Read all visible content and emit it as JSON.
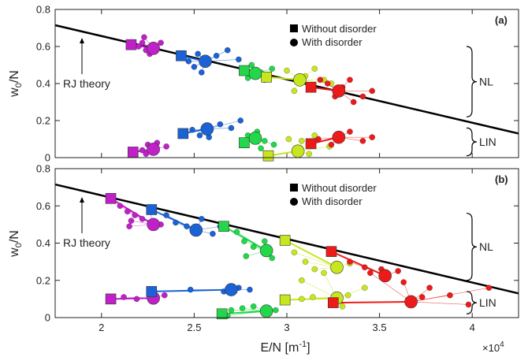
{
  "chart_data": [
    {
      "type": "scatter",
      "panel_label": "(a)",
      "ylabel": "w_0/N",
      "xlim": [
        17500,
        42500
      ],
      "ylim": [
        0,
        0.8
      ],
      "yticks": [
        "0",
        "0.2",
        "0.4",
        "0.6",
        "0.8"
      ],
      "legend": [
        "Without disorder",
        "With disorder"
      ],
      "legend_position": "top-center",
      "annotations": {
        "theory": "RJ theory",
        "upper_group": "NL",
        "lower_group": "LIN"
      },
      "theory_line": {
        "x": [
          17500,
          42500
        ],
        "y": [
          0.715,
          0.13
        ]
      },
      "series": [
        {
          "color": "#c020c8",
          "no_disorder": [
            [
              21600,
              0.61
            ],
            [
              21700,
              0.03
            ]
          ],
          "disorder_mean": [
            [
              22800,
              0.59
            ],
            [
              22800,
              0.045
            ]
          ],
          "disorder_samples": [
            [
              22000,
              0.6
            ],
            [
              22200,
              0.62
            ],
            [
              22400,
              0.58
            ],
            [
              22600,
              0.56
            ],
            [
              23200,
              0.62
            ],
            [
              22300,
              0.65
            ],
            [
              22200,
              0.04
            ],
            [
              22500,
              0.07
            ],
            [
              23000,
              0.08
            ],
            [
              23500,
              0.06
            ],
            [
              22400,
              0.02
            ]
          ]
        },
        {
          "color": "#1a62d6",
          "no_disorder": [
            [
              24300,
              0.55
            ],
            [
              24400,
              0.13
            ]
          ],
          "disorder_mean": [
            [
              25600,
              0.52
            ],
            [
              25700,
              0.155
            ]
          ],
          "disorder_samples": [
            [
              24700,
              0.52
            ],
            [
              25000,
              0.49
            ],
            [
              25200,
              0.56
            ],
            [
              26200,
              0.55
            ],
            [
              26800,
              0.58
            ],
            [
              27400,
              0.53
            ],
            [
              25400,
              0.46
            ],
            [
              24900,
              0.15
            ],
            [
              25300,
              0.12
            ],
            [
              26400,
              0.18
            ],
            [
              27000,
              0.16
            ],
            [
              27500,
              0.2
            ],
            [
              25800,
              0.11
            ]
          ]
        },
        {
          "color": "#22d84a",
          "no_disorder": [
            [
              27700,
              0.47
            ],
            [
              27700,
              0.08
            ]
          ],
          "disorder_mean": [
            [
              28300,
              0.455
            ],
            [
              28300,
              0.105
            ]
          ],
          "disorder_samples": [
            [
              27900,
              0.43
            ],
            [
              28100,
              0.5
            ],
            [
              28600,
              0.46
            ],
            [
              28800,
              0.42
            ],
            [
              29200,
              0.48
            ],
            [
              27900,
              0.12
            ],
            [
              28400,
              0.14
            ],
            [
              28800,
              0.09
            ],
            [
              29300,
              0.07
            ],
            [
              28600,
              0.05
            ]
          ]
        },
        {
          "color": "#c8e61e",
          "no_disorder": [
            [
              28900,
              0.435
            ],
            [
              29000,
              0.01
            ]
          ],
          "disorder_mean": [
            [
              30700,
              0.42
            ],
            [
              30600,
              0.035
            ]
          ],
          "disorder_samples": [
            [
              30000,
              0.47
            ],
            [
              31000,
              0.44
            ],
            [
              31500,
              0.48
            ],
            [
              32000,
              0.42
            ],
            [
              31200,
              0.38
            ],
            [
              30400,
              0.36
            ],
            [
              32400,
              0.4
            ],
            [
              30100,
              0.1
            ],
            [
              30800,
              0.09
            ],
            [
              31500,
              0.12
            ],
            [
              32300,
              0.06
            ],
            [
              31200,
              0.02
            ]
          ]
        },
        {
          "color": "#ee1a1a",
          "no_disorder": [
            [
              31300,
              0.38
            ],
            [
              31300,
              0.075
            ]
          ],
          "disorder_mean": [
            [
              32800,
              0.36
            ],
            [
              32800,
              0.11
            ]
          ],
          "disorder_samples": [
            [
              31800,
              0.42
            ],
            [
              32200,
              0.4
            ],
            [
              32600,
              0.33
            ],
            [
              33000,
              0.38
            ],
            [
              33400,
              0.42
            ],
            [
              34100,
              0.33
            ],
            [
              34600,
              0.36
            ],
            [
              33600,
              0.3
            ],
            [
              31700,
              0.1
            ],
            [
              32400,
              0.07
            ],
            [
              33400,
              0.14
            ],
            [
              34100,
              0.09
            ],
            [
              34600,
              0.11
            ]
          ]
        }
      ]
    },
    {
      "type": "scatter",
      "panel_label": "(b)",
      "xlabel": "E/N [m^-1]",
      "ylabel": "w_0/N",
      "xlim": [
        17500,
        42500
      ],
      "ylim": [
        0,
        0.8
      ],
      "xticks": [
        "2",
        "2.5",
        "3",
        "3.5",
        "4"
      ],
      "yticks": [
        "0",
        "0.2",
        "0.4",
        "0.6",
        "0.8"
      ],
      "x_multiplier": "×10",
      "x_multiplier_exponent": "4",
      "legend": [
        "Without disorder",
        "With disorder"
      ],
      "legend_position": "top-center",
      "annotations": {
        "theory": "RJ theory",
        "upper_group": "NL",
        "lower_group": "LIN"
      },
      "theory_line": {
        "x": [
          17500,
          42500
        ],
        "y": [
          0.715,
          0.13
        ]
      },
      "series": [
        {
          "color": "#c020c8",
          "no_disorder": [
            [
              20500,
              0.64
            ],
            [
              20500,
              0.1
            ]
          ],
          "disorder_mean": [
            [
              22800,
              0.5
            ],
            [
              22800,
              0.105
            ]
          ],
          "disorder_samples": [
            [
              21000,
              0.6
            ],
            [
              21400,
              0.57
            ],
            [
              21800,
              0.55
            ],
            [
              22200,
              0.53
            ],
            [
              22600,
              0.57
            ],
            [
              23200,
              0.5
            ],
            [
              21600,
              0.52
            ],
            [
              21500,
              0.49
            ],
            [
              21200,
              0.11
            ],
            [
              21900,
              0.1
            ],
            [
              22800,
              0.13
            ],
            [
              23400,
              0.12
            ]
          ]
        },
        {
          "color": "#1a62d6",
          "no_disorder": [
            [
              22700,
              0.58
            ],
            [
              22700,
              0.14
            ]
          ],
          "disorder_mean": [
            [
              25100,
              0.47
            ],
            [
              27000,
              0.15
            ]
          ],
          "disorder_samples": [
            [
              23500,
              0.55
            ],
            [
              24000,
              0.51
            ],
            [
              24600,
              0.49
            ],
            [
              25400,
              0.53
            ],
            [
              26000,
              0.45
            ],
            [
              26400,
              0.49
            ],
            [
              27400,
              0.16
            ],
            [
              28000,
              0.15
            ],
            [
              26600,
              0.14
            ],
            [
              24800,
              0.15
            ]
          ]
        },
        {
          "color": "#22d84a",
          "no_disorder": [
            [
              26600,
              0.49
            ],
            [
              26500,
              0.02
            ]
          ],
          "disorder_mean": [
            [
              28900,
              0.36
            ],
            [
              28900,
              0.035
            ]
          ],
          "disorder_samples": [
            [
              27300,
              0.46
            ],
            [
              27700,
              0.41
            ],
            [
              28200,
              0.38
            ],
            [
              27800,
              0.33
            ],
            [
              29200,
              0.32
            ],
            [
              28800,
              0.41
            ],
            [
              27000,
              0.04
            ],
            [
              27600,
              0.05
            ],
            [
              28200,
              0.06
            ],
            [
              29400,
              0.04
            ],
            [
              26800,
              0.01
            ]
          ]
        },
        {
          "color": "#c8e61e",
          "no_disorder": [
            [
              29900,
              0.415
            ],
            [
              29900,
              0.095
            ]
          ],
          "disorder_mean": [
            [
              32700,
              0.27
            ],
            [
              32700,
              0.105
            ]
          ],
          "disorder_samples": [
            [
              30400,
              0.35
            ],
            [
              31000,
              0.3
            ],
            [
              31500,
              0.26
            ],
            [
              32000,
              0.24
            ],
            [
              30800,
              0.2
            ],
            [
              33400,
              0.29
            ],
            [
              30800,
              0.1
            ],
            [
              31400,
              0.11
            ],
            [
              33300,
              0.12
            ],
            [
              34200,
              0.16
            ],
            [
              33000,
              0.06
            ]
          ]
        },
        {
          "color": "#ee1a1a",
          "no_disorder": [
            [
              32400,
              0.355
            ],
            [
              32500,
              0.08
            ]
          ],
          "disorder_mean": [
            [
              35300,
              0.225
            ],
            [
              36700,
              0.085
            ]
          ],
          "disorder_samples": [
            [
              33400,
              0.3
            ],
            [
              34200,
              0.27
            ],
            [
              35100,
              0.26
            ],
            [
              36000,
              0.25
            ],
            [
              36300,
              0.19
            ],
            [
              34500,
              0.24
            ],
            [
              37700,
              0.16
            ],
            [
              38800,
              0.12
            ],
            [
              39800,
              0.07
            ],
            [
              40900,
              0.16
            ],
            [
              37300,
              0.11
            ]
          ]
        }
      ]
    }
  ]
}
